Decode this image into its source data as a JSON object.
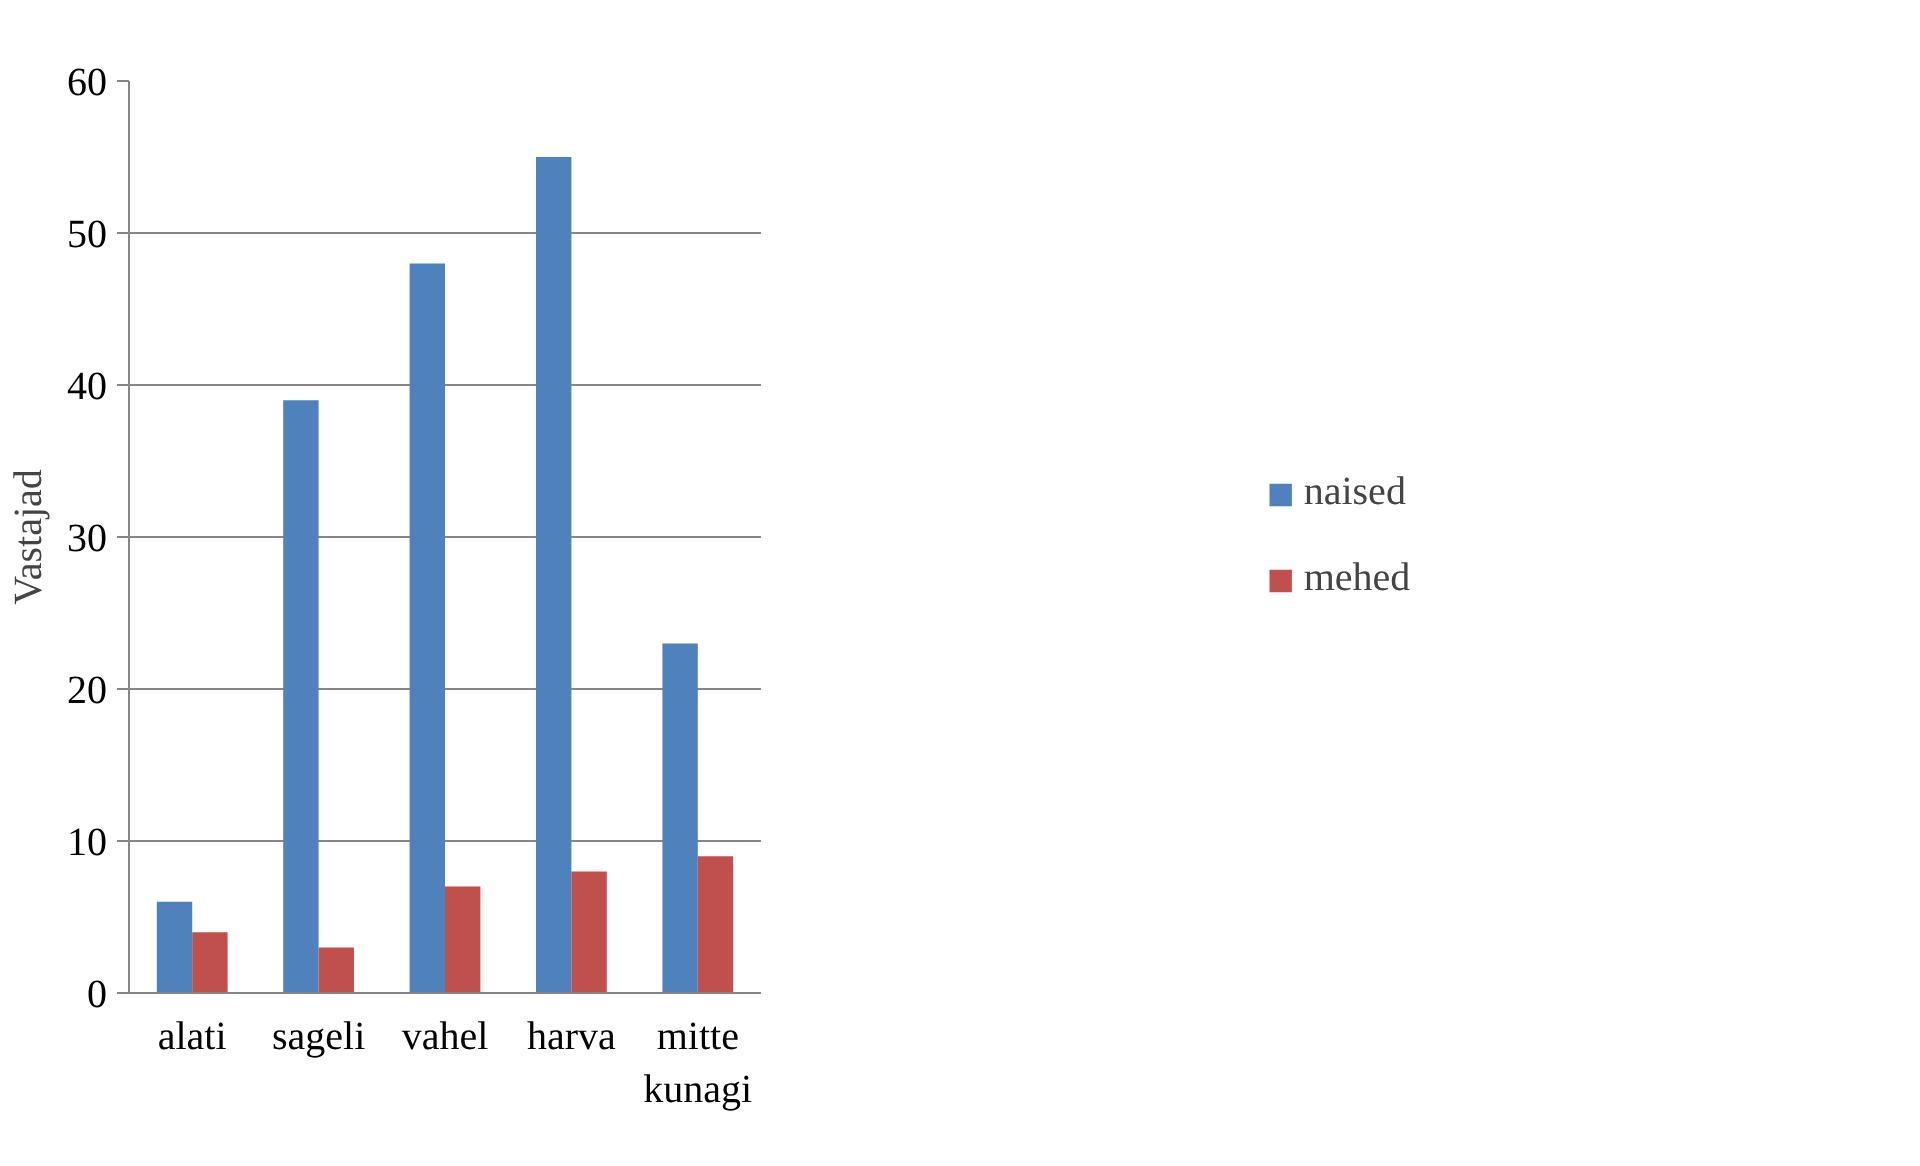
{
  "chart_data": {
    "type": "bar",
    "ylabel": "Vastajad",
    "categories": [
      "alati",
      "sageli",
      "vahel",
      "harva",
      "mitte kunagi"
    ],
    "series": [
      {
        "name": "naised",
        "color": "#4f81bd",
        "values": [
          6,
          39,
          48,
          55,
          23
        ]
      },
      {
        "name": "mehed",
        "color": "#c0504d",
        "values": [
          4,
          3,
          7,
          8,
          9
        ]
      }
    ],
    "ylim": [
      0,
      60
    ],
    "yticks": [
      0,
      10,
      20,
      30,
      40,
      50,
      60
    ],
    "grid": "y",
    "legend": "right"
  }
}
